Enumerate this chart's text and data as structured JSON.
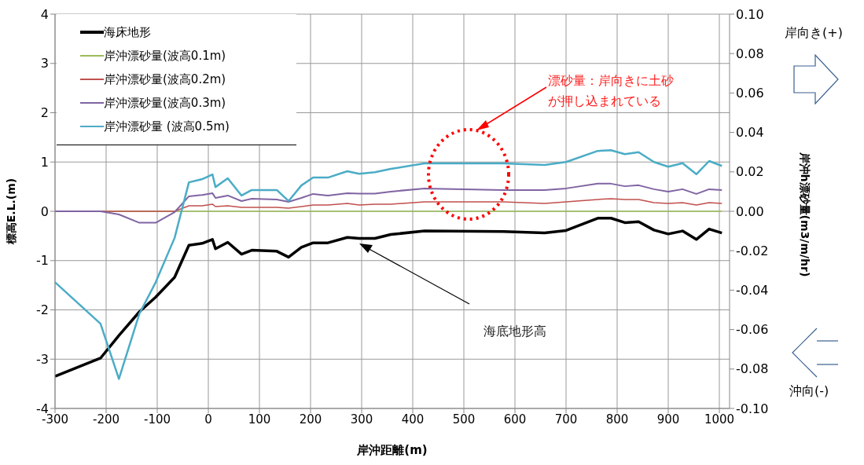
{
  "chart_data": {
    "type": "line",
    "xlabel": "岸沖距離(m)",
    "ylabel": "標高E.L.(m)",
    "y2label": "岸沖h漂砂量(m3/m/hr)",
    "x": [
      -300,
      -211,
      -175,
      -135,
      -103,
      -66,
      -38,
      -12,
      8,
      14,
      38,
      65,
      85,
      134,
      157,
      182,
      205,
      234,
      272,
      295,
      326,
      357,
      423,
      577,
      658,
      700,
      762,
      788,
      815,
      842,
      872,
      900,
      928,
      955,
      980,
      1005
    ],
    "series": [
      {
        "name": "海床地形",
        "color": "#000000",
        "values": [
          -3.35,
          -2.98,
          -2.52,
          -2.04,
          -1.74,
          -1.34,
          -0.69,
          -0.65,
          -0.57,
          -0.76,
          -0.63,
          -0.87,
          -0.79,
          -0.81,
          -0.93,
          -0.73,
          -0.64,
          -0.64,
          -0.53,
          -0.55,
          -0.55,
          -0.47,
          -0.4,
          -0.41,
          -0.44,
          -0.39,
          -0.14,
          -0.14,
          -0.23,
          -0.21,
          -0.38,
          -0.46,
          -0.4,
          -0.57,
          -0.36,
          -0.44
        ]
      },
      {
        "name": "岸沖漂砂量(波高0.1m)",
        "color": "#9bbb59",
        "axis": "y2",
        "values": [
          0,
          0,
          0,
          0,
          0,
          0,
          0,
          0,
          0,
          0,
          0,
          0,
          0,
          0,
          0,
          0,
          0,
          0,
          0,
          0,
          0,
          0,
          0,
          0,
          0,
          0,
          0,
          0,
          0,
          0,
          0,
          0,
          0,
          0,
          0,
          0
        ]
      },
      {
        "name": "岸沖漂砂量(波高0.2m)",
        "color": "#c0504d",
        "axis": "y2",
        "values": [
          0,
          0,
          0,
          0,
          0,
          0,
          0.0028,
          0.0028,
          0.0036,
          0.0024,
          0.0028,
          0.002,
          0.002,
          0.002,
          0.0016,
          0.0024,
          0.0032,
          0.0032,
          0.004,
          0.0032,
          0.0036,
          0.0036,
          0.0048,
          0.0048,
          0.004,
          0.0048,
          0.006,
          0.0064,
          0.006,
          0.006,
          0.0044,
          0.004,
          0.0044,
          0.0032,
          0.0044,
          0.004
        ]
      },
      {
        "name": "岸沖漂砂量(波高0.3m)",
        "color": "#8064a2",
        "axis": "y2",
        "values": [
          0,
          0,
          -0.0016,
          -0.0058,
          -0.0058,
          -0.0004,
          0.0076,
          0.0083,
          0.0092,
          0.0068,
          0.008,
          0.0052,
          0.0064,
          0.006,
          0.0048,
          0.0068,
          0.0088,
          0.008,
          0.0092,
          0.009,
          0.009,
          0.01,
          0.0116,
          0.0108,
          0.0108,
          0.0116,
          0.014,
          0.014,
          0.0127,
          0.0132,
          0.0112,
          0.01,
          0.0112,
          0.0088,
          0.0112,
          0.0108
        ]
      },
      {
        "name": "岸沖漂砂量 (波高0.5m)",
        "color": "#4bacc6",
        "axis": "y2",
        "values": [
          -0.036,
          -0.057,
          -0.085,
          -0.052,
          -0.036,
          -0.0135,
          0.0147,
          0.0163,
          0.0187,
          0.0123,
          0.0167,
          0.008,
          0.0108,
          0.0108,
          0.0052,
          0.0131,
          0.0171,
          0.0171,
          0.0203,
          0.019,
          0.0198,
          0.0215,
          0.0243,
          0.0243,
          0.0235,
          0.025,
          0.0306,
          0.031,
          0.029,
          0.03,
          0.025,
          0.0226,
          0.0244,
          0.0188,
          0.0255,
          0.023
        ]
      }
    ],
    "xlim": [
      -300,
      1020
    ],
    "xticks": [
      -300,
      -200,
      -100,
      0,
      100,
      200,
      300,
      400,
      500,
      600,
      700,
      800,
      900,
      1000
    ],
    "ylim": [
      -4,
      4
    ],
    "yticks": [
      -4,
      -3,
      -2,
      -1,
      0,
      1,
      2,
      3,
      4
    ],
    "y2lim": [
      -0.1,
      0.1
    ],
    "y2ticks": [
      {
        "value": -0.1,
        "label": "-0.10"
      },
      {
        "value": -0.08,
        "label": "-0.08"
      },
      {
        "value": -0.06,
        "label": "-0.06"
      },
      {
        "value": -0.04,
        "label": "-0.04"
      },
      {
        "value": -0.02,
        "label": "-0.02"
      },
      {
        "value": 0,
        "label": "0.00"
      },
      {
        "value": 0.02,
        "label": "0.02"
      },
      {
        "value": 0.04,
        "label": "0.04"
      },
      {
        "value": 0.06,
        "label": "0.06"
      },
      {
        "value": 0.08,
        "label": "0.08"
      },
      {
        "value": 0.1,
        "label": "0.10"
      }
    ],
    "annotations": [
      "漂砂量：岸向きに土砂が押し込まれている",
      "海底地形高",
      "岸向き(+)",
      "沖向(-)"
    ],
    "grid": true,
    "legend": "top left",
    "marker": "none",
    "line_style": "solid"
  }
}
